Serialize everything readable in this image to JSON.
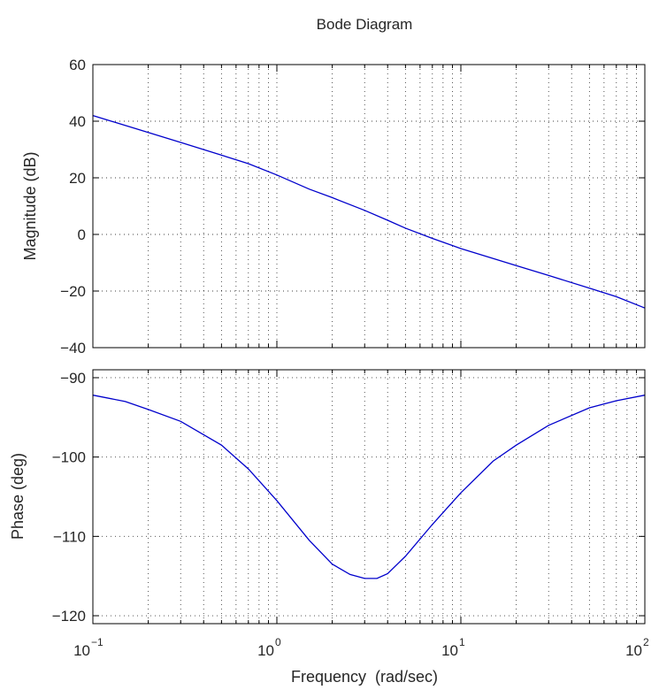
{
  "chart_data": {
    "type": "line",
    "title": "Bode Diagram",
    "xlabel": "Frequency  (rad/sec)",
    "x_scale": "log",
    "x_range": [
      0.1,
      100
    ],
    "x_ticks": [
      {
        "value": 0.1,
        "base": "10",
        "exp": "−1"
      },
      {
        "value": 1,
        "base": "10",
        "exp": "0"
      },
      {
        "value": 10,
        "base": "10",
        "exp": "1"
      },
      {
        "value": 100,
        "base": "10",
        "exp": "2"
      }
    ],
    "grid": true,
    "line_color": "#0000cc",
    "panels": [
      {
        "name": "magnitude",
        "ylabel": "Magnitude (dB)",
        "ylim": [
          -40,
          60
        ],
        "y_ticks": [
          {
            "value": 60,
            "label": "60"
          },
          {
            "value": 40,
            "label": "40"
          },
          {
            "value": 20,
            "label": "20"
          },
          {
            "value": 0,
            "label": "0"
          },
          {
            "value": -20,
            "label": "−20"
          },
          {
            "value": -40,
            "label": "−40"
          }
        ],
        "x": [
          0.1,
          0.2,
          0.3,
          0.5,
          0.7,
          1,
          1.5,
          2,
          3,
          4,
          5,
          7,
          10,
          15,
          20,
          30,
          50,
          70,
          100
        ],
        "y": [
          42,
          36,
          32.5,
          28,
          25,
          21,
          16,
          13,
          8.5,
          5,
          2.2,
          -1.4,
          -5,
          -8.5,
          -11,
          -14.5,
          -19,
          -22,
          -26
        ]
      },
      {
        "name": "phase",
        "ylabel": "Phase (deg)",
        "ylim": [
          -121,
          -89
        ],
        "y_ticks": [
          {
            "value": -90,
            "label": "−90"
          },
          {
            "value": -100,
            "label": "−100"
          },
          {
            "value": -110,
            "label": "−110"
          },
          {
            "value": -120,
            "label": "−120"
          }
        ],
        "x": [
          0.1,
          0.15,
          0.2,
          0.3,
          0.5,
          0.7,
          1,
          1.5,
          2,
          2.5,
          3,
          3.5,
          4,
          5,
          7,
          10,
          15,
          20,
          30,
          50,
          70,
          100
        ],
        "y": [
          -92.2,
          -93,
          -94,
          -95.5,
          -98.5,
          -101.5,
          -105.5,
          -110.5,
          -113.5,
          -114.8,
          -115.3,
          -115.3,
          -114.7,
          -112.5,
          -108.5,
          -104.5,
          -100.5,
          -98.5,
          -96,
          -93.8,
          -92.9,
          -92.2
        ]
      }
    ]
  }
}
